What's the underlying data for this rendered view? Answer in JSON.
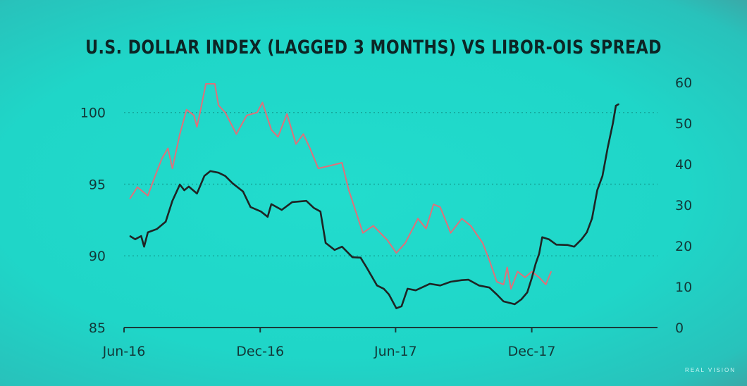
{
  "chart_data": {
    "type": "line",
    "title": "U.S. DOLLAR INDEX (LAGGED 3 MONTHS) VS LIBOR-OIS SPREAD",
    "xlim": [
      "2016-06-01",
      "2018-05-19"
    ],
    "x_ticks": [
      {
        "date": "2016-06-01",
        "label": "Jun-16"
      },
      {
        "date": "2016-12-01",
        "label": "Dec-16"
      },
      {
        "date": "2017-06-01",
        "label": "Jun-17"
      },
      {
        "date": "2017-12-01",
        "label": "Dec-17"
      }
    ],
    "y_left": {
      "lim": [
        85,
        102.1
      ],
      "ticks": [
        "85",
        "90",
        "95",
        "100"
      ],
      "tick_values": [
        85,
        90,
        95,
        100
      ]
    },
    "y_right": {
      "lim": [
        0,
        60
      ],
      "ticks": [
        "0",
        "10",
        "20",
        "30",
        "40",
        "50",
        "60"
      ],
      "tick_values": [
        0,
        10,
        20,
        30,
        40,
        50,
        60
      ]
    },
    "grid": "horizontal dotted at left-axis 90, 95, 100",
    "series": [
      {
        "axis": "left",
        "color": "#e0707a",
        "points": [
          [
            "2016-06-09",
            94.0
          ],
          [
            "2016-06-19",
            94.8
          ],
          [
            "2016-07-03",
            94.2
          ],
          [
            "2016-07-13",
            95.6
          ],
          [
            "2016-07-22",
            96.8
          ],
          [
            "2016-07-30",
            97.5
          ],
          [
            "2016-08-05",
            96.1
          ],
          [
            "2016-08-15",
            98.5
          ],
          [
            "2016-08-24",
            100.2
          ],
          [
            "2016-09-03",
            99.8
          ],
          [
            "2016-09-07",
            99.0
          ],
          [
            "2016-09-12",
            100.2
          ],
          [
            "2016-09-19",
            102.0
          ],
          [
            "2016-10-01",
            102.0
          ],
          [
            "2016-10-06",
            100.5
          ],
          [
            "2016-10-15",
            100.0
          ],
          [
            "2016-10-30",
            98.5
          ],
          [
            "2016-11-13",
            99.8
          ],
          [
            "2016-11-27",
            100.0
          ],
          [
            "2016-12-04",
            100.7
          ],
          [
            "2016-12-16",
            98.8
          ],
          [
            "2016-12-25",
            98.3
          ],
          [
            "2017-01-06",
            99.9
          ],
          [
            "2017-01-18",
            97.8
          ],
          [
            "2017-01-28",
            98.5
          ],
          [
            "2017-02-06",
            97.5
          ],
          [
            "2017-02-17",
            96.1
          ],
          [
            "2017-03-06",
            96.3
          ],
          [
            "2017-03-21",
            96.5
          ],
          [
            "2017-03-30",
            94.6
          ],
          [
            "2017-04-18",
            91.6
          ],
          [
            "2017-05-02",
            92.1
          ],
          [
            "2017-05-21",
            91.1
          ],
          [
            "2017-06-02",
            90.2
          ],
          [
            "2017-06-14",
            90.9
          ],
          [
            "2017-07-01",
            92.6
          ],
          [
            "2017-07-12",
            91.9
          ],
          [
            "2017-07-22",
            93.6
          ],
          [
            "2017-07-31",
            93.4
          ],
          [
            "2017-08-14",
            91.6
          ],
          [
            "2017-08-29",
            92.6
          ],
          [
            "2017-09-10",
            92.1
          ],
          [
            "2017-09-26",
            90.9
          ],
          [
            "2017-10-05",
            89.7
          ],
          [
            "2017-10-15",
            88.2
          ],
          [
            "2017-10-24",
            88.0
          ],
          [
            "2017-10-29",
            89.2
          ],
          [
            "2017-11-03",
            87.7
          ],
          [
            "2017-11-12",
            88.9
          ],
          [
            "2017-11-22",
            88.5
          ],
          [
            "2017-12-01",
            88.9
          ],
          [
            "2017-12-11",
            88.5
          ],
          [
            "2017-12-20",
            88.0
          ],
          [
            "2017-12-27",
            88.9
          ]
        ]
      },
      {
        "axis": "right",
        "color": "#1e2424",
        "points": [
          [
            "2016-06-09",
            22.4
          ],
          [
            "2016-06-16",
            21.6
          ],
          [
            "2016-06-24",
            22.4
          ],
          [
            "2016-06-28",
            19.8
          ],
          [
            "2016-07-03",
            23.3
          ],
          [
            "2016-07-15",
            24.1
          ],
          [
            "2016-07-27",
            25.9
          ],
          [
            "2016-08-05",
            31.0
          ],
          [
            "2016-08-15",
            35.0
          ],
          [
            "2016-08-21",
            33.6
          ],
          [
            "2016-08-27",
            34.5
          ],
          [
            "2016-09-07",
            32.8
          ],
          [
            "2016-09-17",
            37.1
          ],
          [
            "2016-09-25",
            38.3
          ],
          [
            "2016-10-06",
            37.9
          ],
          [
            "2016-10-15",
            37.1
          ],
          [
            "2016-10-25",
            35.3
          ],
          [
            "2016-11-08",
            33.3
          ],
          [
            "2016-11-18",
            29.5
          ],
          [
            "2016-12-02",
            28.4
          ],
          [
            "2016-12-11",
            27.1
          ],
          [
            "2016-12-16",
            30.2
          ],
          [
            "2016-12-30",
            28.8
          ],
          [
            "2017-01-13",
            30.7
          ],
          [
            "2017-02-01",
            31.0
          ],
          [
            "2017-02-11",
            29.3
          ],
          [
            "2017-02-20",
            28.4
          ],
          [
            "2017-02-27",
            20.7
          ],
          [
            "2017-03-11",
            19.0
          ],
          [
            "2017-03-21",
            19.8
          ],
          [
            "2017-04-04",
            17.2
          ],
          [
            "2017-04-15",
            17.1
          ],
          [
            "2017-04-23",
            14.7
          ],
          [
            "2017-05-07",
            10.3
          ],
          [
            "2017-05-16",
            9.5
          ],
          [
            "2017-05-23",
            8.1
          ],
          [
            "2017-06-02",
            4.7
          ],
          [
            "2017-06-09",
            5.2
          ],
          [
            "2017-06-17",
            9.5
          ],
          [
            "2017-06-28",
            9.1
          ],
          [
            "2017-07-17",
            10.7
          ],
          [
            "2017-07-31",
            10.3
          ],
          [
            "2017-08-14",
            11.2
          ],
          [
            "2017-08-29",
            11.6
          ],
          [
            "2017-09-07",
            11.7
          ],
          [
            "2017-09-21",
            10.3
          ],
          [
            "2017-10-05",
            9.8
          ],
          [
            "2017-10-15",
            8.1
          ],
          [
            "2017-10-24",
            6.4
          ],
          [
            "2017-11-08",
            5.7
          ],
          [
            "2017-11-17",
            6.9
          ],
          [
            "2017-11-25",
            8.6
          ],
          [
            "2017-12-01",
            12.1
          ],
          [
            "2017-12-06",
            15.5
          ],
          [
            "2017-12-11",
            18.1
          ],
          [
            "2017-12-15",
            22.1
          ],
          [
            "2017-12-24",
            21.6
          ],
          [
            "2018-01-03",
            20.3
          ],
          [
            "2018-01-18",
            20.2
          ],
          [
            "2018-01-27",
            19.8
          ],
          [
            "2018-02-06",
            21.6
          ],
          [
            "2018-02-13",
            23.3
          ],
          [
            "2018-02-20",
            26.7
          ],
          [
            "2018-02-27",
            33.6
          ],
          [
            "2018-03-06",
            37.1
          ],
          [
            "2018-03-13",
            44.0
          ],
          [
            "2018-03-20",
            50.0
          ],
          [
            "2018-03-24",
            54.3
          ],
          [
            "2018-03-28",
            54.7
          ]
        ]
      }
    ]
  },
  "watermark": {
    "text": "REAL VISION"
  },
  "colors": {
    "background": "#1fd6c8",
    "grid": "#15a89c",
    "axis": "#1a3a3a"
  }
}
